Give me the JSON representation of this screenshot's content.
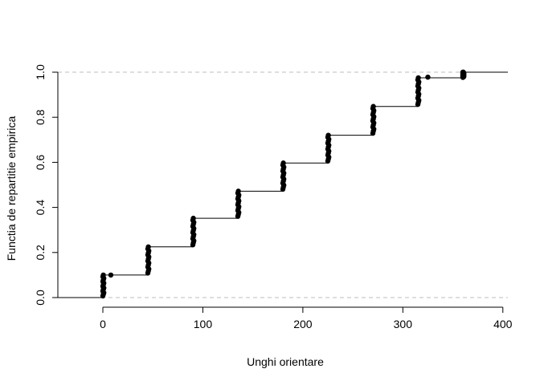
{
  "chart_data": {
    "type": "step",
    "title": "",
    "xlabel": "Unghi orientare",
    "ylabel": "Functia de repartitie empirica",
    "xlim": [
      -45,
      405
    ],
    "ylim": [
      0,
      1
    ],
    "x_ticks": [
      0,
      100,
      200,
      300,
      400
    ],
    "y_ticks": [
      0.0,
      0.2,
      0.4,
      0.6,
      0.8,
      1.0
    ],
    "x_tick_labels": [
      "0",
      "100",
      "200",
      "300",
      "400"
    ],
    "y_tick_labels": [
      "0.0",
      "0.2",
      "0.4",
      "0.6",
      "0.8",
      "1.0"
    ],
    "reference_lines_y": [
      0,
      1
    ],
    "grid": false,
    "legend": "none",
    "steps": [
      {
        "x": 0,
        "y_from": 0.0,
        "y_to": 0.1
      },
      {
        "x": 45,
        "y_from": 0.1,
        "y_to": 0.225
      },
      {
        "x": 90,
        "y_from": 0.225,
        "y_to": 0.352
      },
      {
        "x": 135,
        "y_from": 0.352,
        "y_to": 0.472
      },
      {
        "x": 180,
        "y_from": 0.472,
        "y_to": 0.597
      },
      {
        "x": 225,
        "y_from": 0.597,
        "y_to": 0.72
      },
      {
        "x": 270,
        "y_from": 0.72,
        "y_to": 0.848
      },
      {
        "x": 315,
        "y_from": 0.848,
        "y_to": 0.975
      },
      {
        "x": 360,
        "y_from": 0.975,
        "y_to": 1.0
      }
    ],
    "extra_points": [
      {
        "x": 8,
        "y": 0.1
      },
      {
        "x": 325,
        "y": 0.978
      },
      {
        "x": 360,
        "y": 1.0
      }
    ],
    "colors": {
      "line": "#000000",
      "point": "#000000",
      "reference": "#bebebe"
    }
  }
}
